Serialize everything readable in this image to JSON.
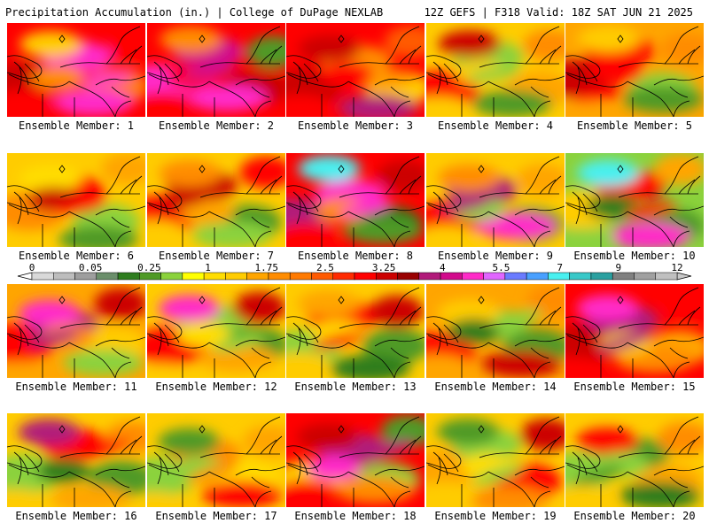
{
  "header": {
    "left_title": "Precipitation Accumulation (in.) | College of DuPage NEXLAB",
    "right_title": "12Z GEFS | F318 Valid: 18Z SAT JUN 21 2025"
  },
  "members": [
    {
      "label": "Ensemble Member: 1",
      "palette": [
        "#ff0000",
        "#cc0000",
        "#ff2bc8",
        "#ff7a00",
        "#ffcc00",
        "#ff2bc8",
        "#ff0000",
        "#ff8c00"
      ]
    },
    {
      "label": "Ensemble Member: 2",
      "palette": [
        "#ff0000",
        "#ff2bc8",
        "#d20a8c",
        "#cc0000",
        "#ff8c00",
        "#ff2bc8",
        "#4f9a26",
        "#ff0000"
      ]
    },
    {
      "label": "Ensemble Member: 3",
      "palette": [
        "#ff0000",
        "#cc0000",
        "#ff8c00",
        "#ffcc00",
        "#cc0000",
        "#b11a7a",
        "#ff5a00",
        "#ff0000"
      ]
    },
    {
      "label": "Ensemble Member: 4",
      "palette": [
        "#ffcc00",
        "#ff0000",
        "#8bd23c",
        "#ffa500",
        "#cc0000",
        "#4f9a26",
        "#ff8c00",
        "#ffcc00"
      ]
    },
    {
      "label": "Ensemble Member: 5",
      "palette": [
        "#ffa500",
        "#cc0000",
        "#ff0000",
        "#8bd23c",
        "#ffcc00",
        "#4f9a26",
        "#ff8c00",
        "#ff0000"
      ]
    },
    {
      "label": "Ensemble Member: 6",
      "palette": [
        "#ffcc00",
        "#ff8c00",
        "#ff0000",
        "#8bd23c",
        "#ffdd00",
        "#4f9a26",
        "#ffa500",
        "#cc0000"
      ]
    },
    {
      "label": "Ensemble Member: 7",
      "palette": [
        "#ffcc00",
        "#ff0000",
        "#cc0000",
        "#4f9a26",
        "#ff8c00",
        "#8bd23c",
        "#ff0000",
        "#ffa500"
      ]
    },
    {
      "label": "Ensemble Member: 8",
      "palette": [
        "#ff0000",
        "#b11a7a",
        "#ff2bc8",
        "#2e7d1e",
        "#49f0f0",
        "#4f9a26",
        "#cc0000",
        "#ff8c00"
      ]
    },
    {
      "label": "Ensemble Member: 9",
      "palette": [
        "#ffcc00",
        "#ff0000",
        "#b11a7a",
        "#4f9a26",
        "#ff8c00",
        "#ff2bc8",
        "#ffa500",
        "#8bd23c"
      ]
    },
    {
      "label": "Ensemble Member: 10",
      "palette": [
        "#8bd23c",
        "#ffcc00",
        "#ff0000",
        "#4f9a26",
        "#49f0f0",
        "#ff2bc8",
        "#ffa500",
        "#2e7d1e"
      ]
    },
    {
      "label": "Ensemble Member: 11",
      "palette": [
        "#ffa500",
        "#ff0000",
        "#b11a7a",
        "#ffcc00",
        "#ff2bc8",
        "#8bd23c",
        "#cc0000",
        "#ff8c00"
      ]
    },
    {
      "label": "Ensemble Member: 12",
      "palette": [
        "#ffcc00",
        "#ff0000",
        "#8bd23c",
        "#4f9a26",
        "#ff2bc8",
        "#ffa500",
        "#cc0000",
        "#ffdd00"
      ]
    },
    {
      "label": "Ensemble Member: 13",
      "palette": [
        "#ffcc00",
        "#8bd23c",
        "#ff0000",
        "#4f9a26",
        "#ffa500",
        "#2e7d1e",
        "#cc0000",
        "#ffdd00"
      ]
    },
    {
      "label": "Ensemble Member: 14",
      "palette": [
        "#ffa500",
        "#ff0000",
        "#8bd23c",
        "#4f9a26",
        "#ffcc00",
        "#cc0000",
        "#ff8c00",
        "#2e7d1e"
      ]
    },
    {
      "label": "Ensemble Member: 15",
      "palette": [
        "#ff0000",
        "#cc0000",
        "#b11a7a",
        "#ffa500",
        "#ff2bc8",
        "#ff8c00",
        "#ff0000",
        "#ffcc00"
      ]
    },
    {
      "label": "Ensemble Member: 16",
      "palette": [
        "#ffcc00",
        "#8bd23c",
        "#ff0000",
        "#4f9a26",
        "#b11a7a",
        "#ffa500",
        "#ff8c00",
        "#2e7d1e"
      ]
    },
    {
      "label": "Ensemble Member: 17",
      "palette": [
        "#ffcc00",
        "#8bd23c",
        "#ff8c00",
        "#ffdd00",
        "#4f9a26",
        "#ff0000",
        "#ffa500",
        "#8bd23c"
      ]
    },
    {
      "label": "Ensemble Member: 18",
      "palette": [
        "#ff0000",
        "#ffcc00",
        "#b11a7a",
        "#8bd23c",
        "#cc0000",
        "#ff8c00",
        "#4f9a26",
        "#ff2bc8"
      ]
    },
    {
      "label": "Ensemble Member: 19",
      "palette": [
        "#ffcc00",
        "#ffa500",
        "#8bd23c",
        "#ff0000",
        "#4f9a26",
        "#ff8c00",
        "#cc0000",
        "#ffdd00"
      ]
    },
    {
      "label": "Ensemble Member: 20",
      "palette": [
        "#ffcc00",
        "#8bd23c",
        "#4f9a26",
        "#ffa500",
        "#ff0000",
        "#2e7d1e",
        "#ff8c00",
        "#8bd23c"
      ]
    }
  ],
  "colorbar": {
    "tick_labels": [
      "0",
      "0.05",
      "0.25",
      "1",
      "1.75",
      "2.5",
      "3.25",
      "4",
      "5.5",
      "7",
      "9",
      "12"
    ],
    "colors": [
      "#d9d9d9",
      "#bdbdbd",
      "#9e9e9e",
      "#6b8f6b",
      "#2e7d1e",
      "#4f9a26",
      "#8bd23c",
      "#ffff00",
      "#ffdd00",
      "#ffcc00",
      "#ffa500",
      "#ff8c00",
      "#ff7a00",
      "#ff5a00",
      "#ff2a00",
      "#ff0000",
      "#cc0000",
      "#990000",
      "#b11a7a",
      "#d20a8c",
      "#ff2bc8",
      "#e066ff",
      "#6a7bff",
      "#49a0ff",
      "#49f0f0",
      "#38c8c8",
      "#2aa0a0",
      "#808080",
      "#a0a0a0",
      "#c0c0c0"
    ]
  }
}
